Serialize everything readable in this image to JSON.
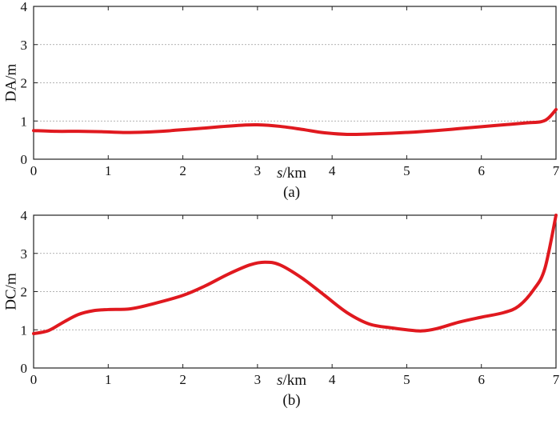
{
  "chart_data": [
    {
      "type": "line",
      "caption": "(a)",
      "xlabel_italic": "s",
      "xlabel_unit": "/km",
      "ylabel": "DA/m",
      "xlim": [
        0,
        7
      ],
      "ylim": [
        0,
        4
      ],
      "xticks": [
        "0",
        "1",
        "2",
        "3",
        "4",
        "5",
        "6",
        "7"
      ],
      "yticks": [
        "0",
        "1",
        "2",
        "3",
        "4"
      ],
      "grid": "horizontal dotted",
      "line_color": "#e0191f",
      "x": [
        0,
        0.3,
        0.6,
        0.9,
        1.2,
        1.5,
        1.8,
        1.9,
        2.2,
        2.5,
        2.8,
        3.0,
        3.3,
        3.6,
        3.9,
        4.2,
        4.5,
        4.8,
        5.1,
        5.4,
        5.7,
        6.0,
        6.3,
        6.6,
        6.8,
        6.9,
        7.0
      ],
      "y": [
        0.75,
        0.73,
        0.73,
        0.72,
        0.7,
        0.71,
        0.74,
        0.76,
        0.8,
        0.85,
        0.89,
        0.9,
        0.86,
        0.78,
        0.69,
        0.65,
        0.66,
        0.68,
        0.71,
        0.75,
        0.8,
        0.85,
        0.9,
        0.95,
        0.98,
        1.08,
        1.3
      ]
    },
    {
      "type": "line",
      "caption": "(b)",
      "xlabel_italic": "s",
      "xlabel_unit": "/km",
      "ylabel": "DC/m",
      "xlim": [
        0,
        7
      ],
      "ylim": [
        0,
        4
      ],
      "xticks": [
        "0",
        "1",
        "2",
        "3",
        "4",
        "5",
        "6",
        "7"
      ],
      "yticks": [
        "0",
        "1",
        "2",
        "3",
        "4"
      ],
      "grid": "horizontal dotted",
      "line_color": "#e0191f",
      "x": [
        0,
        0.2,
        0.4,
        0.6,
        0.8,
        1.0,
        1.3,
        1.6,
        2.0,
        2.3,
        2.6,
        2.9,
        3.1,
        3.3,
        3.6,
        3.9,
        4.2,
        4.5,
        4.8,
        5.0,
        5.2,
        5.4,
        5.7,
        6.0,
        6.3,
        6.5,
        6.7,
        6.85,
        7.0
      ],
      "y": [
        0.9,
        0.98,
        1.2,
        1.4,
        1.5,
        1.53,
        1.55,
        1.68,
        1.9,
        2.15,
        2.45,
        2.7,
        2.77,
        2.7,
        2.35,
        1.9,
        1.45,
        1.15,
        1.05,
        1.0,
        0.97,
        1.03,
        1.2,
        1.33,
        1.45,
        1.62,
        2.05,
        2.6,
        4.0
      ]
    }
  ]
}
